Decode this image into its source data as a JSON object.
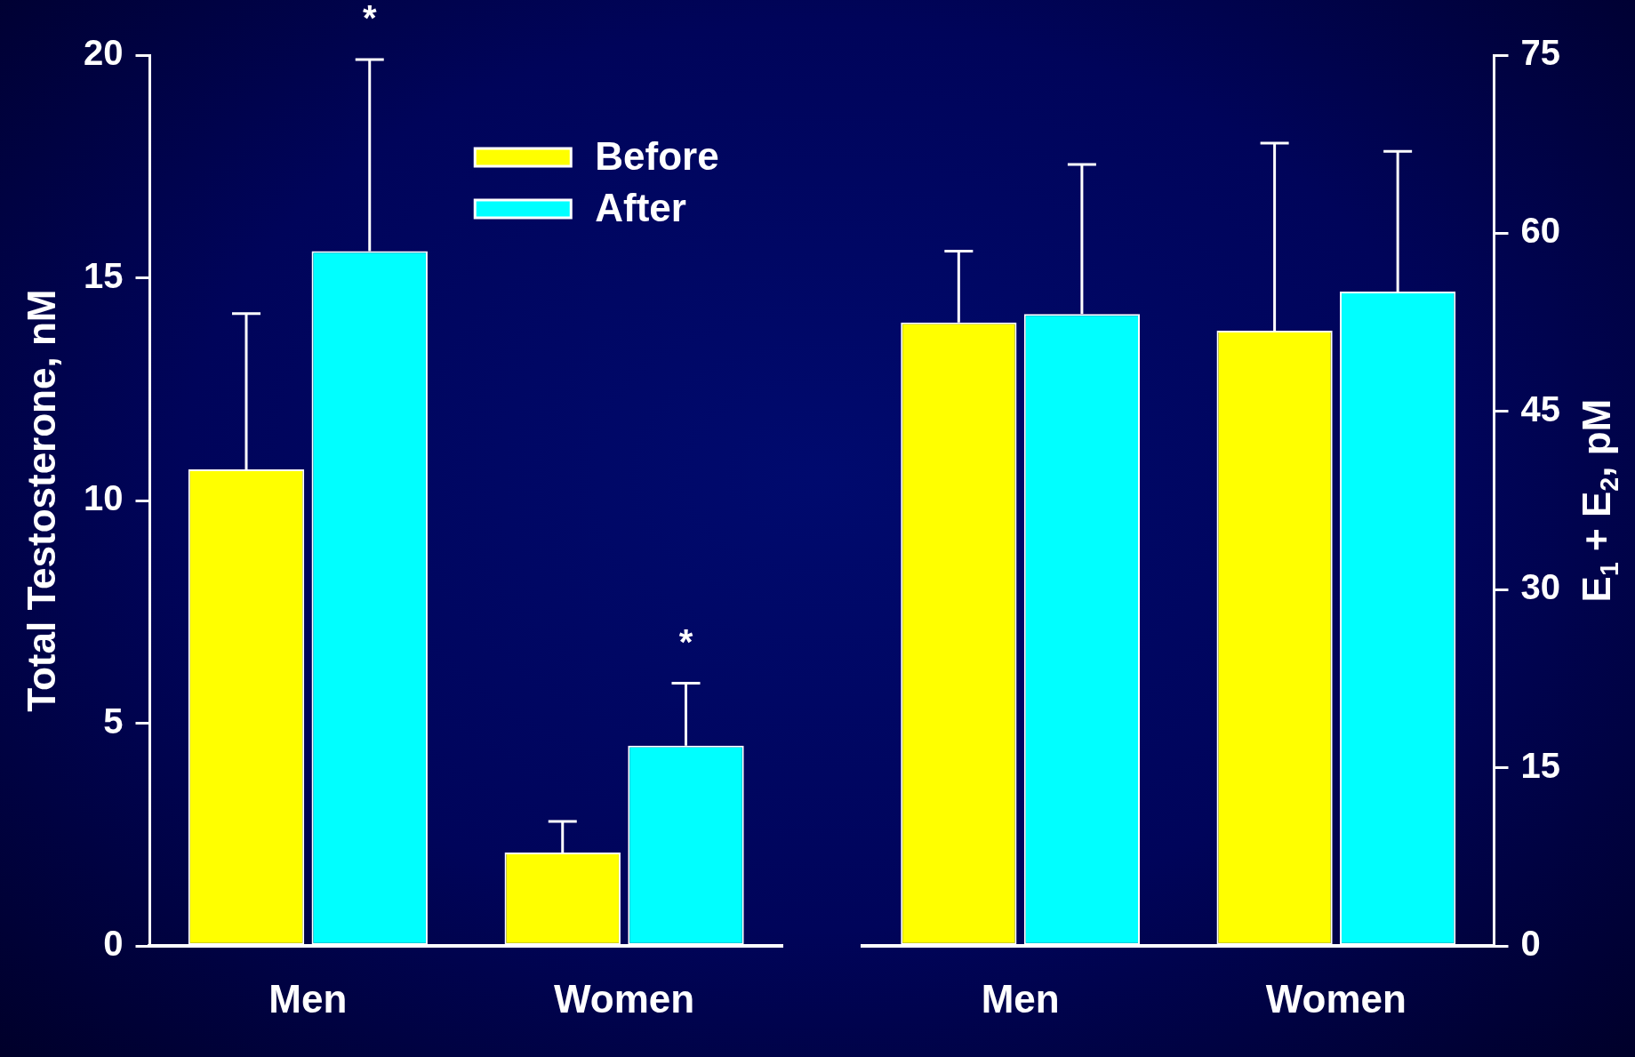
{
  "chart_data": [
    {
      "type": "bar",
      "ylabel": "Total Testosterone, nM",
      "categories": [
        "Men",
        "Women"
      ],
      "ylim": [
        0,
        20
      ],
      "yticks": [
        0,
        5,
        10,
        15,
        20
      ],
      "legend": "top",
      "series": [
        {
          "name": "Before",
          "color": "#ffff00",
          "values": [
            10.7,
            2.1
          ],
          "errors": [
            [
              10.7,
              14.2
            ],
            [
              2.1,
              2.8
            ]
          ]
        },
        {
          "name": "After",
          "color": "#00ffff",
          "values": [
            15.6,
            4.5
          ],
          "errors": [
            [
              15.6,
              19.9
            ],
            [
              4.5,
              5.9
            ]
          ]
        }
      ],
      "annotations": [
        "*",
        "*"
      ]
    },
    {
      "type": "bar",
      "y2label": "E$_{1}$ + E$_{2}$, pM",
      "categories": [
        "Men",
        "Women"
      ],
      "y2lim": [
        0,
        75
      ],
      "y2ticks": [
        0,
        15,
        30,
        45,
        60,
        75
      ],
      "series": [
        {
          "color": "#ffff00",
          "axis": "y2",
          "values": [
            52.5,
            51.8
          ],
          "errors": [
            [
              52.5,
              58.5
            ],
            [
              51.8,
              67.6
            ]
          ]
        },
        {
          "color": "#00ffff",
          "axis": "y2",
          "values": [
            53.2,
            55.1
          ],
          "errors": [
            [
              53.2,
              65.8
            ],
            [
              55.1,
              66.9
            ]
          ]
        }
      ]
    }
  ]
}
